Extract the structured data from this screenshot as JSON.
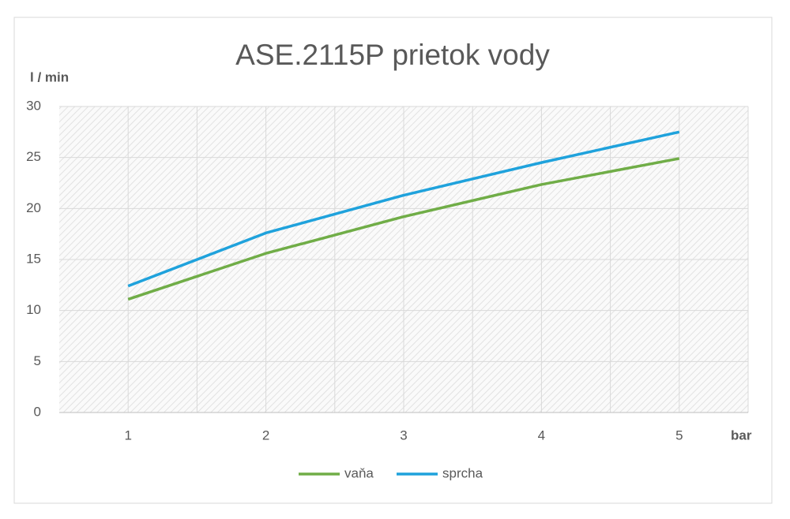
{
  "chart_data": {
    "type": "line",
    "title": "ASE.2115P prietok vody",
    "y_label": "l / min",
    "x_label": "bar",
    "categories": [
      "1",
      "2",
      "3",
      "4",
      "5"
    ],
    "series": [
      {
        "name": "vaňa",
        "color": "#70ad47",
        "values": [
          11.1,
          15.6,
          19.2,
          22.35,
          24.9
        ]
      },
      {
        "name": "sprcha",
        "color": "#1fa2dc",
        "values": [
          12.4,
          17.6,
          21.3,
          24.5,
          27.5
        ]
      }
    ],
    "ylim": [
      0,
      30
    ],
    "yticks": [
      0,
      5,
      10,
      15,
      20,
      25,
      30
    ],
    "grid": true,
    "legend": "bottom"
  }
}
